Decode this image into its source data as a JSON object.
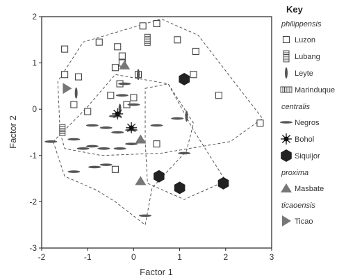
{
  "chart_data": {
    "type": "scatter",
    "xlabel": "Factor 1",
    "ylabel": "Factor 2",
    "xlim": [
      -2,
      3
    ],
    "ylim": [
      -3,
      2
    ],
    "xticks": [
      -2,
      -1,
      0,
      1,
      2,
      3
    ],
    "yticks": [
      -3,
      -2,
      -1,
      0,
      1,
      2
    ],
    "legend": {
      "title": "Key",
      "position": "right",
      "groups": [
        {
          "name": "philippensis",
          "items": [
            {
              "label": "Luzon",
              "marker": "open-square"
            },
            {
              "label": "Lubang",
              "marker": "striped-rect-vertical"
            },
            {
              "label": "Leyte",
              "marker": "vertical-bar"
            },
            {
              "label": "Marinduque",
              "marker": "striped-rect-horizontal"
            }
          ]
        },
        {
          "name": "centralis",
          "items": [
            {
              "label": "Negros",
              "marker": "horizontal-dash"
            },
            {
              "label": "Bohol",
              "marker": "starburst"
            },
            {
              "label": "Siquijor",
              "marker": "filled-hexagon"
            }
          ]
        },
        {
          "name": "proxima",
          "items": [
            {
              "label": "Masbate",
              "marker": "filled-triangle"
            }
          ]
        },
        {
          "name": "ticaoensis",
          "items": [
            {
              "label": "Ticao",
              "marker": "right-triangle"
            }
          ]
        }
      ]
    },
    "hulls": [
      {
        "name": "philippensis",
        "points": [
          [
            -1.6,
            -0.5
          ],
          [
            -1.65,
            0.6
          ],
          [
            -1.1,
            1.45
          ],
          [
            0.6,
            1.95
          ],
          [
            1.4,
            1.6
          ],
          [
            2.8,
            -0.2
          ],
          [
            2.1,
            -0.7
          ],
          [
            0.6,
            -0.95
          ],
          [
            -0.7,
            -1.0
          ],
          [
            -1.5,
            -0.85
          ]
        ]
      },
      {
        "name": "centralis",
        "points": [
          [
            -1.75,
            -0.7
          ],
          [
            -1.5,
            -1.45
          ],
          [
            -0.8,
            -1.75
          ],
          [
            -0.4,
            -2.0
          ],
          [
            0.25,
            -2.5
          ],
          [
            0.4,
            -1.7
          ],
          [
            1.15,
            -0.9
          ],
          [
            1.3,
            -0.3
          ],
          [
            0.75,
            0.55
          ],
          [
            -0.4,
            0.75
          ],
          [
            -1.05,
            0.0
          ]
        ]
      },
      {
        "name": "proxima",
        "points": [
          [
            0.25,
            0.45
          ],
          [
            0.75,
            0.55
          ],
          [
            1.3,
            -0.45
          ],
          [
            2.0,
            -1.55
          ],
          [
            1.1,
            -1.95
          ],
          [
            0.3,
            -1.6
          ],
          [
            0.25,
            -0.7
          ]
        ]
      }
    ],
    "series": [
      {
        "name": "Luzon",
        "marker": "open-square",
        "points": [
          [
            -1.5,
            1.3
          ],
          [
            -1.5,
            0.75
          ],
          [
            -1.2,
            0.7
          ],
          [
            -0.75,
            1.45
          ],
          [
            -0.35,
            1.35
          ],
          [
            -0.25,
            1.15
          ],
          [
            0.2,
            1.8
          ],
          [
            0.5,
            1.85
          ],
          [
            0.95,
            1.5
          ],
          [
            1.35,
            1.25
          ],
          [
            1.3,
            0.75
          ],
          [
            1.85,
            0.3
          ],
          [
            2.75,
            -0.3
          ],
          [
            -0.4,
            0.9
          ],
          [
            -0.25,
            1.0
          ],
          [
            0.1,
            0.75
          ],
          [
            -0.3,
            0.55
          ],
          [
            -0.5,
            0.3
          ],
          [
            0.0,
            0.25
          ],
          [
            -1.3,
            0.1
          ],
          [
            -1.0,
            -0.05
          ],
          [
            -0.15,
            0.1
          ],
          [
            0.5,
            -0.75
          ],
          [
            -0.4,
            -1.3
          ]
        ]
      },
      {
        "name": "Lubang",
        "marker": "striped-rect-vertical",
        "points": [
          [
            0.3,
            1.5
          ],
          [
            -1.55,
            -0.45
          ]
        ]
      },
      {
        "name": "Leyte",
        "marker": "vertical-bar",
        "points": [
          [
            0.1,
            0.75
          ],
          [
            1.15,
            -0.15
          ],
          [
            -1.25,
            0.35
          ],
          [
            -0.3,
            0.0
          ]
        ]
      },
      {
        "name": "Negros",
        "marker": "horizontal-dash",
        "points": [
          [
            -0.2,
            0.55
          ],
          [
            -0.25,
            0.3
          ],
          [
            0.0,
            0.1
          ],
          [
            -0.4,
            -0.15
          ],
          [
            -0.9,
            -0.35
          ],
          [
            -0.6,
            -0.4
          ],
          [
            -0.35,
            -0.5
          ],
          [
            -0.05,
            -0.45
          ],
          [
            -1.8,
            -0.7
          ],
          [
            -1.3,
            -0.65
          ],
          [
            -1.1,
            -0.85
          ],
          [
            -0.9,
            -0.8
          ],
          [
            -0.65,
            -0.85
          ],
          [
            -0.3,
            -0.85
          ],
          [
            -0.05,
            -0.75
          ],
          [
            -1.3,
            -1.35
          ],
          [
            -0.85,
            -1.25
          ],
          [
            -0.6,
            -1.2
          ],
          [
            0.5,
            -0.35
          ],
          [
            0.95,
            -0.2
          ],
          [
            1.1,
            -0.95
          ],
          [
            0.25,
            -2.3
          ]
        ]
      },
      {
        "name": "Bohol",
        "marker": "starburst",
        "points": [
          [
            -0.35,
            -0.1
          ],
          [
            -0.05,
            -0.4
          ]
        ]
      },
      {
        "name": "Siquijor",
        "marker": "filled-hexagon",
        "points": [
          [
            1.1,
            0.65
          ],
          [
            0.55,
            -1.45
          ],
          [
            1.0,
            -1.7
          ],
          [
            1.95,
            -1.6
          ]
        ]
      },
      {
        "name": "Masbate",
        "marker": "filled-triangle",
        "points": [
          [
            -0.2,
            0.95
          ],
          [
            0.15,
            -0.65
          ],
          [
            0.15,
            -1.55
          ]
        ]
      },
      {
        "name": "Ticao",
        "marker": "right-triangle",
        "points": [
          [
            -1.45,
            0.45
          ]
        ]
      }
    ]
  }
}
